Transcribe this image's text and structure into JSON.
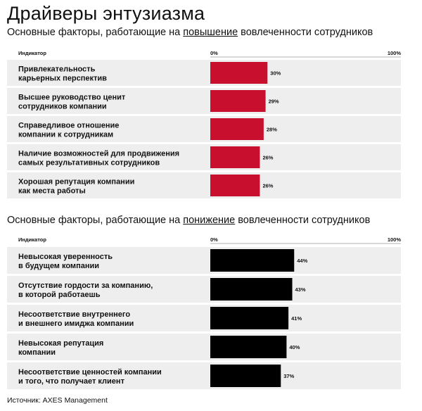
{
  "header": {
    "title": "Драйверы энтузиазма"
  },
  "sections": [
    {
      "subtitle_before": "Основные факторы, работающие на ",
      "subtitle_emph": "повышение",
      "subtitle_after": " вовлеченности сотрудников"
    },
    {
      "subtitle_before": "Основные факторы, работающие на ",
      "subtitle_emph": "понижение",
      "subtitle_after": " вовлеченности сотрудников"
    }
  ],
  "colors": {
    "positive_bar": "#c8102e",
    "negative_bar": "#000000",
    "row_band": "#eeeeee",
    "text": "#111111"
  },
  "chart_data": [
    {
      "type": "bar",
      "orientation": "horizontal",
      "column_header": "Индикатор",
      "axis_min_label": "0%",
      "axis_max_label": "100%",
      "xlim": [
        0,
        100
      ],
      "color": "#c8102e",
      "categories": [
        [
          "Привлекательность",
          "карьерных перспектив"
        ],
        [
          "Высшее руководство ценит",
          "сотрудников компании"
        ],
        [
          "Справедливое отношение",
          "компании к сотрудникам"
        ],
        [
          "Наличие возможностей для продвижения",
          "самых результативных сотрудников"
        ],
        [
          "Хорошая репутация компании",
          "как места работы"
        ]
      ],
      "values": [
        30,
        29,
        28,
        26,
        26
      ],
      "value_labels": [
        "30%",
        "29%",
        "28%",
        "26%",
        "26%"
      ]
    },
    {
      "type": "bar",
      "orientation": "horizontal",
      "column_header": "Индикатор",
      "axis_min_label": "0%",
      "axis_max_label": "100%",
      "xlim": [
        0,
        100
      ],
      "color": "#000000",
      "categories": [
        [
          "Невысокая уверенность",
          "в будущем компании"
        ],
        [
          "Отсутствие гордости за компанию,",
          "в которой работаешь"
        ],
        [
          "Несоответствие внутреннего",
          "и внешнего имиджа компании"
        ],
        [
          "Невысокая репутация",
          "компании"
        ],
        [
          "Несоответствие ценностей компании",
          "и того, что получает клиент"
        ]
      ],
      "values": [
        44,
        43,
        41,
        40,
        37
      ],
      "value_labels": [
        "44%",
        "43%",
        "41%",
        "40%",
        "37%"
      ]
    }
  ],
  "footer": {
    "source": "Источник: AXES Management"
  }
}
